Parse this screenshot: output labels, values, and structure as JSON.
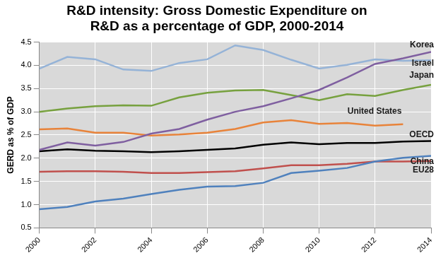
{
  "chart_data": {
    "type": "line",
    "title": [
      "R&D intensity: Gross Domestic Expenditure on",
      "R&D as a percentage of GDP, 2000-2014"
    ],
    "y_label": "GERD as % of GDP",
    "x": [
      2000,
      2001,
      2002,
      2003,
      2004,
      2005,
      2006,
      2007,
      2008,
      2009,
      2010,
      2011,
      2012,
      2013,
      2014
    ],
    "series": [
      {
        "name": "Korea",
        "color": "#7f5fa0",
        "values": [
          2.18,
          2.34,
          2.27,
          2.35,
          2.53,
          2.63,
          2.83,
          3.0,
          3.12,
          3.29,
          3.47,
          3.74,
          4.03,
          4.15,
          4.29
        ]
      },
      {
        "name": "Israel",
        "color": "#95b3d7",
        "values": [
          3.93,
          4.18,
          4.13,
          3.91,
          3.88,
          4.05,
          4.13,
          4.43,
          4.33,
          4.12,
          3.93,
          4.01,
          4.13,
          4.1,
          4.11
        ]
      },
      {
        "name": "Japan",
        "color": "#77a13f",
        "values": [
          3.0,
          3.07,
          3.12,
          3.14,
          3.13,
          3.31,
          3.41,
          3.46,
          3.47,
          3.36,
          3.25,
          3.38,
          3.34,
          3.47,
          3.58
        ]
      },
      {
        "name": "United States",
        "color": "#e8833a",
        "values": [
          2.62,
          2.64,
          2.55,
          2.55,
          2.49,
          2.51,
          2.55,
          2.63,
          2.77,
          2.82,
          2.74,
          2.76,
          2.7,
          2.73,
          null
        ]
      },
      {
        "name": "OECD",
        "color": "#000000",
        "values": [
          2.15,
          2.19,
          2.16,
          2.15,
          2.13,
          2.15,
          2.18,
          2.21,
          2.29,
          2.34,
          2.3,
          2.33,
          2.33,
          2.36,
          2.37
        ]
      },
      {
        "name": "China",
        "color": "#4f81bd",
        "values": [
          0.9,
          0.95,
          1.07,
          1.13,
          1.23,
          1.32,
          1.39,
          1.4,
          1.47,
          1.68,
          1.73,
          1.79,
          1.93,
          2.01,
          2.05
        ]
      },
      {
        "name": "EU28",
        "color": "#c0504d",
        "values": [
          1.71,
          1.72,
          1.72,
          1.71,
          1.68,
          1.68,
          1.7,
          1.72,
          1.78,
          1.85,
          1.85,
          1.88,
          1.93,
          1.93,
          1.94
        ]
      }
    ],
    "xlim": [
      2000,
      2014
    ],
    "xticks": [
      2000,
      2002,
      2004,
      2006,
      2008,
      2010,
      2012,
      2014
    ],
    "ylim": [
      0.5,
      4.5
    ],
    "yticks": [
      0.5,
      {
        "value": 1,
        "label": "1.0"
      },
      1.5,
      {
        "value": 2,
        "label": "2.0"
      },
      2.5,
      {
        "value": 3,
        "label": "3.0"
      },
      3.5,
      {
        "value": 4,
        "label": "4.0"
      },
      4.5
    ],
    "grid": true
  }
}
